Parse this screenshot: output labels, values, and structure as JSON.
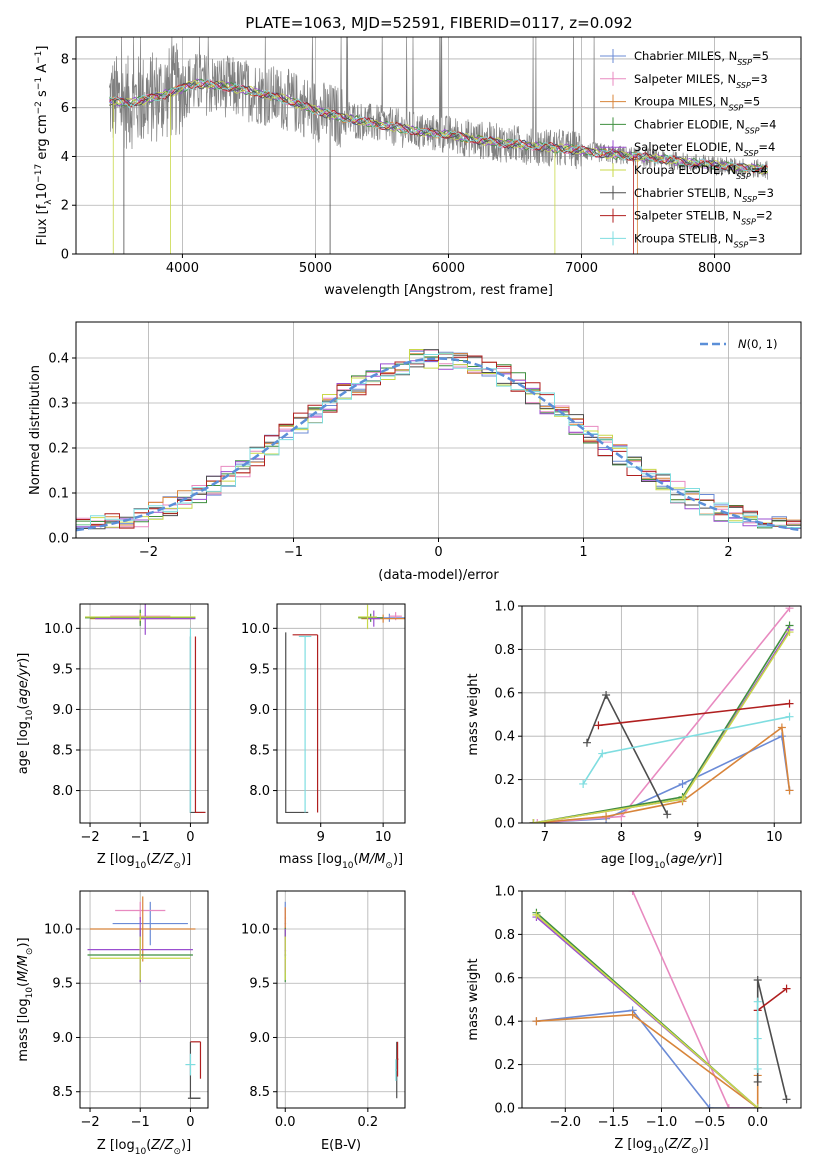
{
  "figure": {
    "title": "PLATE=1063, MJD=52591, FIBERID=0117, z=0.092"
  },
  "colors": {
    "Chabrier MILES": "#6b8bd6",
    "Salpeter MILES": "#e88ac0",
    "Kroupa MILES": "#d8843a",
    "Chabrier ELODIE": "#3f8f3f",
    "Salpeter ELODIE": "#9b4fd0",
    "Kroupa ELODIE": "#c9d84a",
    "Chabrier STELIB": "#4d4d4d",
    "Salpeter STELIB": "#b01f1f",
    "Kroupa STELIB": "#7fdde0",
    "data": "#808080",
    "gaussian": "#5b8fd8"
  },
  "chart_data": [
    {
      "id": "spectrum",
      "type": "line",
      "xlabel": "wavelength [Angstrom, rest frame]",
      "ylabel": "Flux [f_λ 10^-17 erg cm^-2 s^-1 A^-1]",
      "xlim": [
        3200,
        8650
      ],
      "ylim": [
        0,
        8.9
      ],
      "xticks": [
        4000,
        5000,
        6000,
        7000,
        8000
      ],
      "yticks": [
        0,
        2,
        4,
        6,
        8
      ],
      "legend_position": "top-right",
      "legend": [
        {
          "name": "Chabrier MILES",
          "nssp": "5"
        },
        {
          "name": "Salpeter MILES",
          "nssp": "3"
        },
        {
          "name": "Kroupa MILES",
          "nssp": "5"
        },
        {
          "name": "Chabrier ELODIE",
          "nssp": "4"
        },
        {
          "name": "Salpeter ELODIE",
          "nssp": "4"
        },
        {
          "name": "Kroupa ELODIE",
          "nssp": "4"
        },
        {
          "name": "Chabrier STELIB",
          "nssp": "3"
        },
        {
          "name": "Salpeter STELIB",
          "nssp": "2"
        },
        {
          "name": "Kroupa STELIB",
          "nssp": "3"
        }
      ],
      "model_continuum": [
        [
          3450,
          6.3
        ],
        [
          3600,
          6.2
        ],
        [
          3700,
          6.3
        ],
        [
          3900,
          6.6
        ],
        [
          4000,
          6.8
        ],
        [
          4100,
          7.0
        ],
        [
          4300,
          6.9
        ],
        [
          4500,
          6.7
        ],
        [
          4800,
          6.3
        ],
        [
          5000,
          5.9
        ],
        [
          5200,
          5.6
        ],
        [
          5400,
          5.4
        ],
        [
          5600,
          5.2
        ],
        [
          5800,
          5.0
        ],
        [
          6000,
          4.9
        ],
        [
          6200,
          4.7
        ],
        [
          6400,
          4.55
        ],
        [
          6600,
          4.45
        ],
        [
          6800,
          4.35
        ],
        [
          7000,
          4.25
        ],
        [
          7200,
          4.1
        ],
        [
          7400,
          4.0
        ],
        [
          7600,
          3.9
        ],
        [
          7800,
          3.75
        ],
        [
          8000,
          3.65
        ],
        [
          8200,
          3.55
        ],
        [
          8400,
          3.45
        ]
      ]
    },
    {
      "id": "residuals",
      "type": "histogram",
      "xlabel": "(data-model)/error",
      "ylabel": "Normed distribution",
      "xlim": [
        -2.5,
        2.5
      ],
      "ylim": [
        0,
        0.48
      ],
      "xticks": [
        -2,
        -1,
        0,
        1,
        2
      ],
      "yticks": [
        0.0,
        0.1,
        0.2,
        0.3,
        0.4
      ],
      "legend_position": "top-right",
      "gaussian_label": "N(0,1)",
      "bin_width": 0.1
    },
    {
      "id": "age-vs-Z",
      "type": "scatter",
      "xlabel": "Z [log10(Z/Z☉)]",
      "ylabel": "age  [log10(age/yr)]",
      "xlim": [
        -2.2,
        0.35
      ],
      "ylim": [
        7.6,
        10.3
      ],
      "xticks": [
        -2,
        -1,
        0
      ],
      "yticks": [
        8.0,
        8.5,
        9.0,
        9.5,
        10.0
      ]
    },
    {
      "id": "age-vs-mass",
      "type": "scatter",
      "xlabel": "mass [log10(M/M☉)]",
      "ylabel": "",
      "xlim": [
        8.3,
        10.35
      ],
      "ylim": [
        7.6,
        10.3
      ],
      "xticks": [
        9,
        10
      ],
      "yticks": [
        8.0,
        8.5,
        9.0,
        9.5,
        10.0
      ]
    },
    {
      "id": "massweight-vs-age",
      "type": "line",
      "xlabel": "age  [log10(age/yr)]",
      "ylabel": "mass weight",
      "xlim": [
        6.7,
        10.35
      ],
      "ylim": [
        0,
        1
      ],
      "xticks": [
        7,
        8,
        9,
        10
      ],
      "yticks": [
        0.0,
        0.2,
        0.4,
        0.6,
        0.8,
        1.0
      ],
      "series": [
        {
          "name": "Chabrier MILES",
          "points": [
            [
              6.85,
              0.0
            ],
            [
              7.8,
              0.02
            ],
            [
              8.8,
              0.18
            ],
            [
              10.1,
              0.4
            ],
            [
              10.2,
              0.15
            ]
          ]
        },
        {
          "name": "Salpeter MILES",
          "points": [
            [
              6.9,
              0.0
            ],
            [
              8.0,
              0.03
            ],
            [
              10.2,
              0.99
            ]
          ]
        },
        {
          "name": "Kroupa MILES",
          "points": [
            [
              6.85,
              0.0
            ],
            [
              7.8,
              0.03
            ],
            [
              8.8,
              0.1
            ],
            [
              10.1,
              0.44
            ],
            [
              10.2,
              0.15
            ]
          ]
        },
        {
          "name": "Chabrier ELODIE",
          "points": [
            [
              6.85,
              0.0
            ],
            [
              8.8,
              0.12
            ],
            [
              10.2,
              0.91
            ]
          ]
        },
        {
          "name": "Salpeter ELODIE",
          "points": [
            [
              6.85,
              0.0
            ],
            [
              8.8,
              0.11
            ],
            [
              10.2,
              0.89
            ]
          ]
        },
        {
          "name": "Kroupa ELODIE",
          "points": [
            [
              6.85,
              0.0
            ],
            [
              8.8,
              0.11
            ],
            [
              10.2,
              0.88
            ]
          ]
        },
        {
          "name": "Chabrier STELIB",
          "points": [
            [
              7.55,
              0.37
            ],
            [
              7.8,
              0.59
            ],
            [
              8.6,
              0.04
            ]
          ]
        },
        {
          "name": "Salpeter STELIB",
          "points": [
            [
              7.7,
              0.45
            ],
            [
              10.2,
              0.55
            ]
          ]
        },
        {
          "name": "Kroupa STELIB",
          "points": [
            [
              7.5,
              0.18
            ],
            [
              7.75,
              0.32
            ],
            [
              10.2,
              0.49
            ]
          ]
        }
      ]
    },
    {
      "id": "mass-vs-Z",
      "type": "scatter",
      "xlabel": "Z [log10(Z/Z☉)]",
      "ylabel": "mass [log10(M/M☉)]",
      "xlim": [
        -2.2,
        0.35
      ],
      "ylim": [
        8.35,
        10.35
      ],
      "xticks": [
        -2,
        -1,
        0
      ],
      "yticks": [
        8.5,
        9.0,
        9.5,
        10.0
      ]
    },
    {
      "id": "mass-vs-EBV",
      "type": "scatter",
      "xlabel": "E(B-V)",
      "ylabel": "",
      "xlim": [
        -0.02,
        0.29
      ],
      "ylim": [
        8.35,
        10.35
      ],
      "xticks": [
        0.0,
        0.2
      ],
      "yticks": [
        8.5,
        9.0,
        9.5,
        10.0
      ]
    },
    {
      "id": "massweight-vs-Z",
      "type": "line",
      "xlabel": "Z [log10(Z/Z☉)]",
      "ylabel": "mass weight",
      "xlim": [
        -2.45,
        0.45
      ],
      "ylim": [
        0,
        1
      ],
      "xticks": [
        -2.0,
        -1.5,
        -1.0,
        -0.5,
        0.0
      ],
      "yticks": [
        0.0,
        0.2,
        0.4,
        0.6,
        0.8,
        1.0
      ],
      "series": [
        {
          "name": "Chabrier MILES",
          "points": [
            [
              -2.3,
              0.4
            ],
            [
              -1.3,
              0.45
            ],
            [
              -0.5,
              0.0
            ],
            [
              0.0,
              0.0
            ]
          ]
        },
        {
          "name": "Salpeter MILES",
          "points": [
            [
              -1.3,
              1.0
            ],
            [
              -0.3,
              0.0
            ],
            [
              0.0,
              0.0
            ]
          ]
        },
        {
          "name": "Kroupa MILES",
          "points": [
            [
              -2.3,
              0.4
            ],
            [
              -1.3,
              0.43
            ],
            [
              0.0,
              0.0
            ],
            [
              0.0,
              0.15
            ]
          ]
        },
        {
          "name": "Chabrier ELODIE",
          "points": [
            [
              -2.3,
              0.9
            ],
            [
              0.0,
              0.0
            ]
          ]
        },
        {
          "name": "Salpeter ELODIE",
          "points": [
            [
              -2.3,
              0.88
            ],
            [
              0.0,
              0.0
            ]
          ]
        },
        {
          "name": "Kroupa ELODIE",
          "points": [
            [
              -2.3,
              0.89
            ],
            [
              0.0,
              0.0
            ]
          ]
        },
        {
          "name": "Chabrier STELIB",
          "points": [
            [
              0.0,
              0.12
            ],
            [
              0.0,
              0.59
            ],
            [
              0.3,
              0.04
            ]
          ]
        },
        {
          "name": "Salpeter STELIB",
          "points": [
            [
              0.0,
              0.45
            ],
            [
              0.3,
              0.55
            ]
          ]
        },
        {
          "name": "Kroupa STELIB",
          "points": [
            [
              0.0,
              0.18
            ],
            [
              0.0,
              0.32
            ],
            [
              0.0,
              0.49
            ]
          ]
        }
      ]
    }
  ]
}
